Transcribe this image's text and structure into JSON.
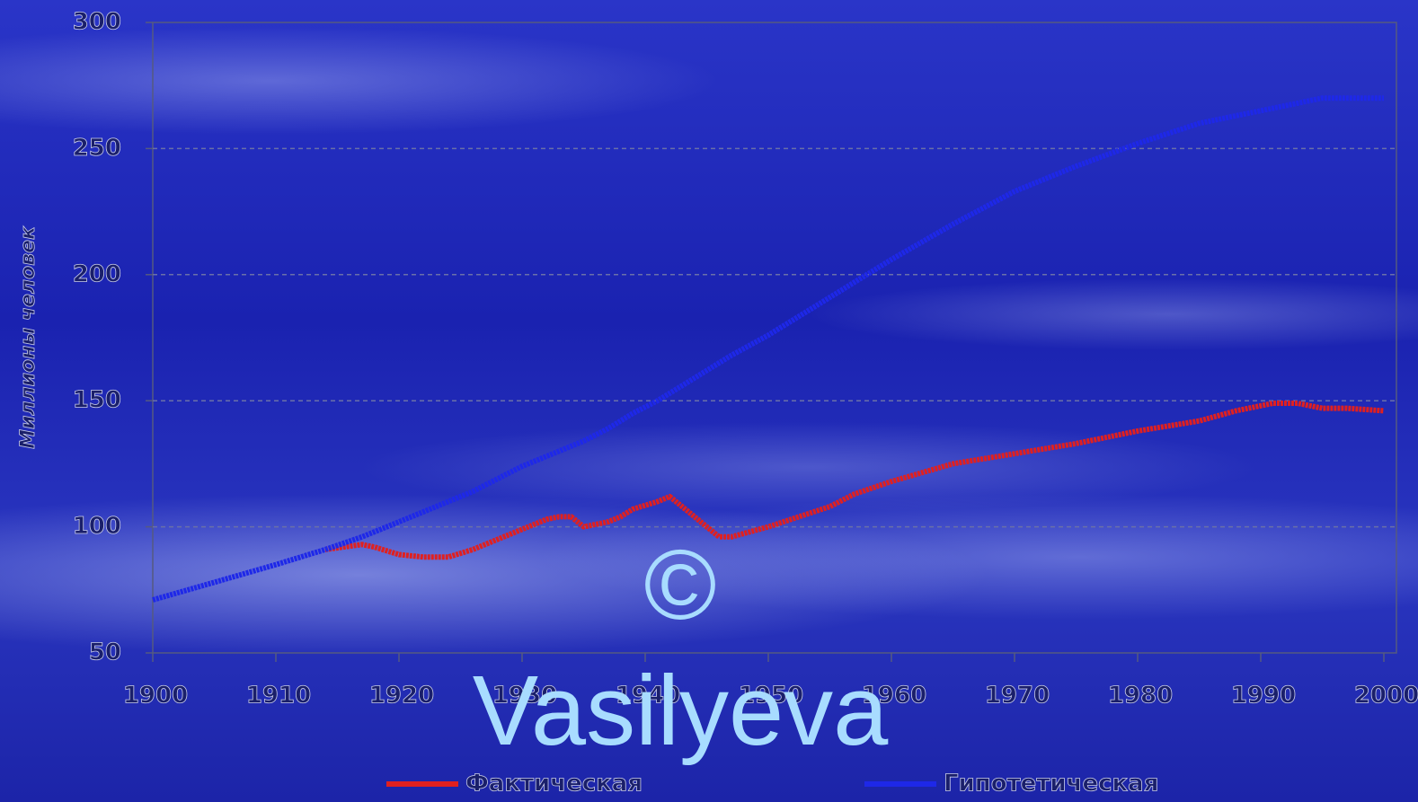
{
  "chart_data": {
    "type": "line",
    "y_label": "Миллионы человек",
    "x": [
      1900,
      1905,
      1910,
      1914,
      1917,
      1918,
      1920,
      1922,
      1924,
      1926,
      1928,
      1930,
      1932,
      1933,
      1934,
      1935,
      1937,
      1938,
      1939,
      1941,
      1942,
      1943,
      1946,
      1947,
      1950,
      1955,
      1957,
      1960,
      1965,
      1970,
      1975,
      1980,
      1985,
      1988,
      1991,
      1993,
      1995,
      1997,
      2000
    ],
    "series": [
      {
        "name": "Фактическая",
        "color": "#e02020",
        "values": [
          null,
          null,
          null,
          91,
          93,
          92,
          89,
          88,
          88,
          91,
          95,
          99,
          103,
          104,
          104,
          100,
          102,
          104,
          107,
          110,
          112,
          108,
          96,
          96,
          100,
          108,
          113,
          118,
          125,
          129,
          133,
          138,
          142,
          146,
          149,
          149,
          147,
          147,
          146
        ]
      },
      {
        "name": "Гипотетическая",
        "color": "#1e28e8",
        "values": [
          71,
          78,
          85,
          91,
          96,
          98,
          102,
          106,
          110,
          114,
          119,
          124,
          128,
          130,
          132,
          134,
          139,
          142,
          145,
          150,
          153,
          156,
          165,
          168,
          176,
          191,
          197,
          206,
          220,
          233,
          243,
          252,
          260,
          263,
          266,
          268,
          270,
          270,
          270
        ]
      }
    ],
    "xlim": [
      1900,
      2000
    ],
    "xticks": [
      1900,
      1910,
      1920,
      1930,
      1940,
      1950,
      1960,
      1970,
      1980,
      1990,
      2000
    ],
    "ylim": [
      50,
      300
    ],
    "yticks": [
      50,
      100,
      150,
      200,
      250,
      300
    ],
    "grid": true,
    "legend": "bottom",
    "annotations": [
      "©",
      "Vasilyeva"
    ]
  }
}
